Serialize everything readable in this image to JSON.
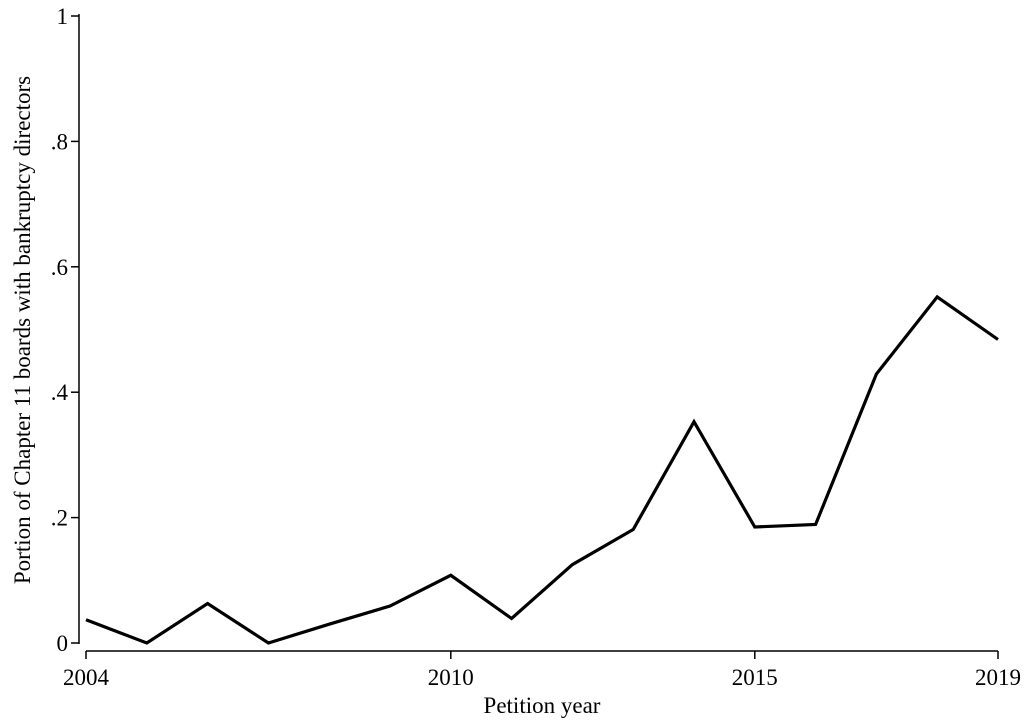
{
  "chart_data": {
    "type": "line",
    "title": "",
    "xlabel": "Petition year",
    "ylabel": "Portion of Chapter 11 boards with bankruptcy directors",
    "xlim": [
      2004,
      2019
    ],
    "ylim": [
      0,
      1
    ],
    "x_ticks": [
      2004,
      2010,
      2015,
      2019
    ],
    "x_tick_labels": [
      "2004",
      "2010",
      "2015",
      "2019"
    ],
    "y_ticks": [
      0,
      0.2,
      0.4,
      0.6,
      0.8,
      1
    ],
    "y_tick_labels": [
      "0",
      ".2",
      ".4",
      ".6",
      ".8",
      "1"
    ],
    "grid": false,
    "legend": "none",
    "series": [
      {
        "x": [
          2004,
          2005,
          2006,
          2007,
          2008,
          2009,
          2010,
          2011,
          2012,
          2013,
          2014,
          2015,
          2016,
          2017,
          2018,
          2019
        ],
        "values": [
          0.037,
          0.0,
          0.063,
          0.0,
          0.03,
          0.059,
          0.108,
          0.039,
          0.125,
          0.181,
          0.353,
          0.185,
          0.189,
          0.429,
          0.552,
          0.484
        ],
        "color": "#000000"
      }
    ]
  }
}
